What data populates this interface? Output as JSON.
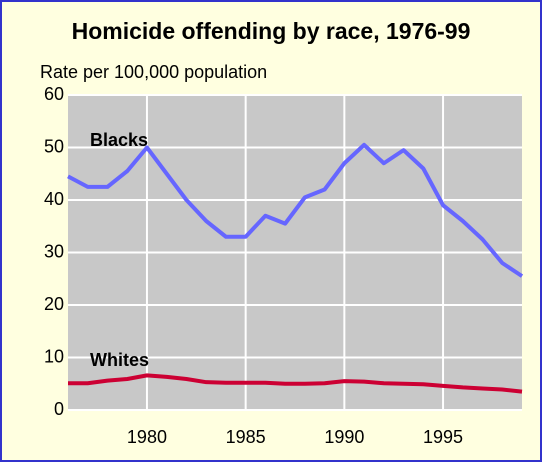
{
  "chart_data": {
    "type": "line",
    "title": "Homicide offending by race, 1976-99",
    "subtitle": "Rate per 100,000 population",
    "x": [
      1976,
      1977,
      1978,
      1979,
      1980,
      1981,
      1982,
      1983,
      1984,
      1985,
      1986,
      1987,
      1988,
      1989,
      1990,
      1991,
      1992,
      1993,
      1994,
      1995,
      1996,
      1997,
      1998,
      1999
    ],
    "series": [
      {
        "name": "Blacks",
        "color": "#6666ff",
        "values": [
          44.5,
          42.5,
          42.5,
          45.5,
          50,
          45,
          40,
          36,
          33,
          33,
          37,
          35.5,
          40.5,
          42,
          47,
          50.5,
          47,
          49.5,
          46,
          39,
          36,
          32.5,
          28,
          25.5
        ]
      },
      {
        "name": "Whites",
        "color": "#cc0033",
        "values": [
          5.1,
          5.1,
          5.6,
          5.9,
          6.6,
          6.3,
          5.9,
          5.3,
          5.2,
          5.2,
          5.2,
          5.0,
          5.0,
          5.1,
          5.5,
          5.4,
          5.1,
          5.0,
          4.9,
          4.6,
          4.3,
          4.1,
          3.9,
          3.5
        ]
      }
    ],
    "xlim": [
      1976,
      1999
    ],
    "xticks": [
      1980,
      1985,
      1990,
      1995
    ],
    "ylim": [
      0,
      60
    ],
    "yticks": [
      0,
      10,
      20,
      30,
      40,
      50,
      60
    ],
    "grid": true
  }
}
